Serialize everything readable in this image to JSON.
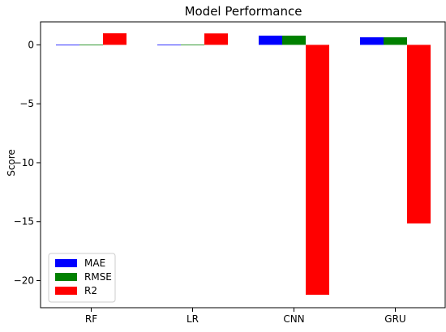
{
  "chart_data": {
    "type": "bar",
    "title": "Model Performance",
    "xlabel": "",
    "ylabel": "Score",
    "categories": [
      "RF",
      "LR",
      "CNN",
      "GRU"
    ],
    "series": [
      {
        "name": "MAE",
        "color": "#0000ff",
        "values": [
          0.01,
          0.02,
          0.78,
          0.64
        ]
      },
      {
        "name": "RMSE",
        "color": "#008000",
        "values": [
          0.02,
          0.03,
          0.78,
          0.64
        ]
      },
      {
        "name": "R2",
        "color": "#ff0000",
        "values": [
          0.98,
          0.97,
          -21.2,
          -15.15
        ]
      }
    ],
    "ylim": [
      -22.3,
      1.95
    ],
    "yticks": [
      0,
      -5,
      -10,
      -15,
      -20
    ],
    "yticklabels": [
      "0",
      "−5",
      "−10",
      "−15",
      "−20"
    ],
    "grid": false,
    "legend_position": "lower-left"
  }
}
